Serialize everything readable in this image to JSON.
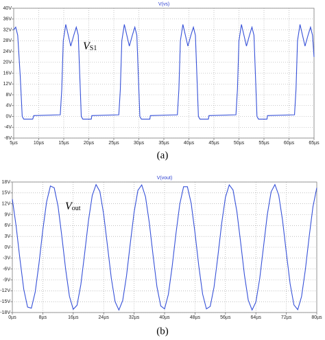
{
  "chart_data": [
    {
      "type": "line",
      "title": "V(vs)",
      "color": "#3550d8",
      "grid": true,
      "x": [
        5,
        5.4,
        5.8,
        6.3,
        6.7,
        7.0,
        8.8,
        9.0,
        14.3,
        14.6,
        14.9,
        15.4,
        15.9,
        16.4,
        17.0,
        17.5,
        17.9,
        18.2,
        18.5,
        18.8,
        20.5,
        20.6,
        26.0,
        26.3,
        26.6,
        27.1,
        27.6,
        28.1,
        28.7,
        29.2,
        29.6,
        29.9,
        30.2,
        30.5,
        32.2,
        32.3,
        37.7,
        38.0,
        38.3,
        38.8,
        39.3,
        39.8,
        40.4,
        40.9,
        41.3,
        41.6,
        41.9,
        42.2,
        43.9,
        44.0,
        49.4,
        49.7,
        50.0,
        50.5,
        51.0,
        51.5,
        52.1,
        52.6,
        53.0,
        53.3,
        53.6,
        53.9,
        55.6,
        55.7,
        61.1,
        61.4,
        61.7,
        62.2,
        62.7,
        63.2,
        63.8,
        64.3,
        64.7,
        65.0
      ],
      "values": [
        32,
        33,
        30,
        15,
        0,
        -1,
        -1,
        0.3,
        0.6,
        10,
        28,
        34,
        30,
        26,
        30,
        33,
        30,
        15,
        0,
        -1,
        -1,
        0.3,
        0.6,
        10,
        28,
        34,
        30,
        26,
        30,
        33,
        30,
        15,
        0,
        -1,
        -1,
        0.3,
        0.6,
        10,
        28,
        34,
        30,
        26,
        30,
        33,
        30,
        15,
        0,
        -1,
        -1,
        0.3,
        0.6,
        10,
        28,
        34,
        30,
        26,
        30,
        33,
        30,
        15,
        0,
        -1,
        -1,
        0.3,
        0.6,
        10,
        28,
        34,
        30,
        26,
        30,
        33,
        30,
        22
      ],
      "xlim": [
        5,
        65
      ],
      "ylim": [
        -8,
        40
      ],
      "xticks": [
        {
          "value": 5,
          "label": "5µs"
        },
        {
          "value": 10,
          "label": "10µs"
        },
        {
          "value": 15,
          "label": "15µs"
        },
        {
          "value": 20,
          "label": "20µs"
        },
        {
          "value": 25,
          "label": "25µs"
        },
        {
          "value": 30,
          "label": "30µs"
        },
        {
          "value": 35,
          "label": "35µs"
        },
        {
          "value": 40,
          "label": "40µs"
        },
        {
          "value": 45,
          "label": "45µs"
        },
        {
          "value": 50,
          "label": "50µs"
        },
        {
          "value": 55,
          "label": "55µs"
        },
        {
          "value": 60,
          "label": "60µs"
        },
        {
          "value": 65,
          "label": "65µs"
        }
      ],
      "yticks": [
        {
          "value": -8,
          "label": "-8V"
        },
        {
          "value": -4,
          "label": "-4V"
        },
        {
          "value": 0,
          "label": "0V"
        },
        {
          "value": 4,
          "label": "4V"
        },
        {
          "value": 8,
          "label": "8V"
        },
        {
          "value": 12,
          "label": "12V"
        },
        {
          "value": 16,
          "label": "16V"
        },
        {
          "value": 20,
          "label": "20V"
        },
        {
          "value": 24,
          "label": "24V"
        },
        {
          "value": 28,
          "label": "28V"
        },
        {
          "value": 32,
          "label": "32V"
        },
        {
          "value": 36,
          "label": "36V"
        },
        {
          "value": 40,
          "label": "40V"
        }
      ],
      "annotation": {
        "text": "V",
        "sub": "S1"
      },
      "caption": "(a)"
    },
    {
      "type": "line",
      "title": "V(vout)",
      "color": "#3550d8",
      "grid": true,
      "x": [
        0,
        1,
        2,
        3,
        4,
        5,
        6,
        7,
        8,
        9,
        10,
        11,
        12,
        13,
        14,
        15,
        16,
        17,
        18,
        19,
        20,
        21,
        22,
        23,
        24,
        25,
        26,
        27,
        28,
        29,
        30,
        31,
        32,
        33,
        34,
        35,
        36,
        37,
        38,
        39,
        40,
        41,
        42,
        43,
        44,
        45,
        46,
        47,
        48,
        49,
        50,
        51,
        52,
        53,
        54,
        55,
        56,
        57,
        58,
        59,
        60,
        61,
        62,
        63,
        64,
        65,
        66,
        67,
        68,
        69,
        70,
        71,
        72,
        73,
        74,
        75,
        76,
        77,
        78,
        79,
        80
      ],
      "values": [
        13.3,
        5.8,
        -3.3,
        -11.6,
        -16.5,
        -16.8,
        -12.4,
        -4.5,
        4.7,
        12.5,
        16.9,
        16.4,
        11.4,
        3.1,
        -6.0,
        -13.5,
        -17.1,
        -16.0,
        -10.3,
        -1.7,
        7.3,
        14.3,
        17.3,
        15.4,
        9.1,
        0.4,
        -8.5,
        -15.0,
        -17.3,
        -14.7,
        -7.9,
        1.1,
        9.7,
        15.7,
        17.2,
        13.9,
        6.7,
        -2.4,
        -10.9,
        -16.2,
        -17.0,
        -13.0,
        -5.3,
        3.8,
        11.9,
        16.7,
        16.7,
        12.1,
        4.0,
        -5.2,
        -12.9,
        -17.0,
        -16.3,
        -11.0,
        -2.6,
        6.5,
        13.8,
        17.2,
        15.8,
        9.9,
        1.3,
        -7.7,
        -14.6,
        -17.3,
        -15.1,
        -8.7,
        0.1,
        9.0,
        15.3,
        17.3,
        14.4,
        7.5,
        -1.5,
        -10.1,
        -15.9,
        -17.2,
        -13.6,
        -6.2,
        2.9,
        11.2,
        16.4
      ],
      "xlim": [
        0,
        80
      ],
      "ylim": [
        -18,
        18
      ],
      "xticks": [
        {
          "value": 0,
          "label": "0µs"
        },
        {
          "value": 8,
          "label": "8µs"
        },
        {
          "value": 16,
          "label": "16µs"
        },
        {
          "value": 24,
          "label": "24µs"
        },
        {
          "value": 32,
          "label": "32µs"
        },
        {
          "value": 40,
          "label": "40µs"
        },
        {
          "value": 48,
          "label": "48µs"
        },
        {
          "value": 56,
          "label": "56µs"
        },
        {
          "value": 64,
          "label": "64µs"
        },
        {
          "value": 72,
          "label": "72µs"
        },
        {
          "value": 80,
          "label": "80µs"
        }
      ],
      "yticks": [
        {
          "value": -18,
          "label": "-18V"
        },
        {
          "value": -15,
          "label": "-15V"
        },
        {
          "value": -12,
          "label": "-12V"
        },
        {
          "value": -9,
          "label": "-9V"
        },
        {
          "value": -6,
          "label": "-6V"
        },
        {
          "value": -3,
          "label": "-3V"
        },
        {
          "value": 0,
          "label": "0V"
        },
        {
          "value": 3,
          "label": "3V"
        },
        {
          "value": 6,
          "label": "6V"
        },
        {
          "value": 9,
          "label": "9V"
        },
        {
          "value": 12,
          "label": "12V"
        },
        {
          "value": 15,
          "label": "15V"
        },
        {
          "value": 18,
          "label": "18V"
        }
      ],
      "annotation": {
        "text": "V",
        "sub": "out"
      },
      "caption": "(b)"
    }
  ]
}
